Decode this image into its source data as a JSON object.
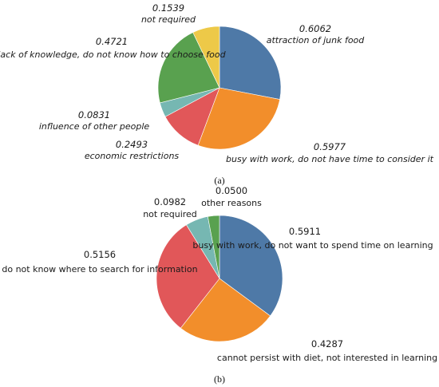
{
  "chart_data": [
    {
      "type": "pie",
      "caption": "(a)",
      "slices": [
        {
          "label": "attraction of junk food",
          "value": 0.6062,
          "color": "#4e79a7"
        },
        {
          "label": "busy with work, do not have time to consider it",
          "value": 0.5977,
          "color": "#f28e2b"
        },
        {
          "label": "economic restrictions",
          "value": 0.2493,
          "color": "#e15759"
        },
        {
          "label": "influence of other people",
          "value": 0.0831,
          "color": "#76b7b2"
        },
        {
          "label": "lack of knowledge, do not know how to choose food",
          "value": 0.4721,
          "color": "#59a14f"
        },
        {
          "label": "not required",
          "value": 0.1539,
          "color": "#edc948"
        }
      ]
    },
    {
      "type": "pie",
      "caption": "(b)",
      "slices": [
        {
          "label": "busy with work, do not want to spend time on learning",
          "value": 0.5911,
          "color": "#4e79a7"
        },
        {
          "label": "cannot persist with diet, not interested in learning",
          "value": 0.4287,
          "color": "#f28e2b"
        },
        {
          "label": "do not know where to search for information",
          "value": 0.5156,
          "color": "#e15759"
        },
        {
          "label": "not required",
          "value": 0.0982,
          "color": "#76b7b2"
        },
        {
          "label": "other reasons",
          "value": 0.05,
          "color": "#59a14f"
        }
      ]
    }
  ]
}
